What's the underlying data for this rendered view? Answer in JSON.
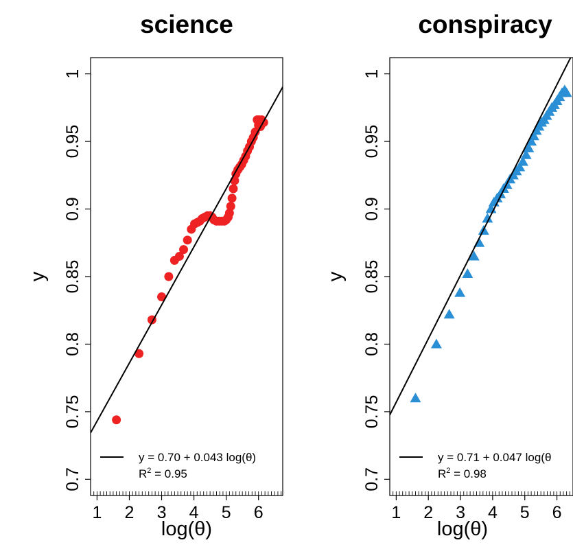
{
  "chart_data": [
    {
      "type": "scatter",
      "title": "science",
      "xlabel": "log(θ)",
      "ylabel": "y",
      "xlim": [
        0.8,
        6.75
      ],
      "ylim": [
        0.688,
        1.012
      ],
      "xticks": [
        1,
        2,
        3,
        4,
        5,
        6
      ],
      "yticks": [
        0.7,
        0.75,
        0.8,
        0.85,
        0.9,
        0.95,
        1
      ],
      "marker": "circle",
      "color": "#ee2222",
      "fit": {
        "intercept": 0.7,
        "slope": 0.043
      },
      "legend": {
        "position": "bottom-right",
        "equation": "y = 0.70 + 0.043 log(θ)",
        "r2_prefix": "R",
        "r2_sup": "2",
        "r2_suffix": " = 0.95"
      },
      "points": [
        [
          1.6,
          0.744
        ],
        [
          2.3,
          0.793
        ],
        [
          2.7,
          0.818
        ],
        [
          3.0,
          0.835
        ],
        [
          3.22,
          0.85
        ],
        [
          3.4,
          0.862
        ],
        [
          3.55,
          0.865
        ],
        [
          3.68,
          0.87
        ],
        [
          3.8,
          0.877
        ],
        [
          3.92,
          0.885
        ],
        [
          4.02,
          0.889
        ],
        [
          4.1,
          0.89
        ],
        [
          4.18,
          0.891
        ],
        [
          4.26,
          0.893
        ],
        [
          4.34,
          0.894
        ],
        [
          4.42,
          0.895
        ],
        [
          4.5,
          0.895
        ],
        [
          4.56,
          0.894
        ],
        [
          4.62,
          0.892
        ],
        [
          4.7,
          0.891
        ],
        [
          4.78,
          0.891
        ],
        [
          4.86,
          0.891
        ],
        [
          4.94,
          0.891
        ],
        [
          5.0,
          0.892
        ],
        [
          5.06,
          0.894
        ],
        [
          5.1,
          0.897
        ],
        [
          5.14,
          0.902
        ],
        [
          5.18,
          0.908
        ],
        [
          5.22,
          0.915
        ],
        [
          5.26,
          0.921
        ],
        [
          5.3,
          0.926
        ],
        [
          5.36,
          0.929
        ],
        [
          5.42,
          0.931
        ],
        [
          5.48,
          0.933
        ],
        [
          5.54,
          0.936
        ],
        [
          5.6,
          0.939
        ],
        [
          5.66,
          0.943
        ],
        [
          5.72,
          0.946
        ],
        [
          5.78,
          0.95
        ],
        [
          5.84,
          0.953
        ],
        [
          5.9,
          0.957
        ],
        [
          5.96,
          0.966
        ],
        [
          6.02,
          0.966
        ],
        [
          6.1,
          0.966
        ],
        [
          6.16,
          0.964
        ],
        [
          6.0,
          0.962
        ],
        [
          6.06,
          0.961
        ]
      ]
    },
    {
      "type": "scatter",
      "title": "conspiracy",
      "xlabel": "log(θ)",
      "ylabel": "y",
      "xlim": [
        0.8,
        6.5
      ],
      "ylim": [
        0.688,
        1.012
      ],
      "xticks": [
        1,
        2,
        3,
        4,
        5,
        6
      ],
      "yticks": [
        0.7,
        0.75,
        0.8,
        0.85,
        0.9,
        0.95,
        1
      ],
      "marker": "triangle",
      "color": "#2a8fd4",
      "fit": {
        "intercept": 0.71,
        "slope": 0.047
      },
      "legend": {
        "position": "bottom-right",
        "equation": "y = 0.71 + 0.047 log(θ",
        "r2_prefix": "R",
        "r2_sup": "2",
        "r2_suffix": " = 0.98"
      },
      "points": [
        [
          1.6,
          0.76
        ],
        [
          2.25,
          0.8
        ],
        [
          2.65,
          0.822
        ],
        [
          2.98,
          0.838
        ],
        [
          3.22,
          0.852
        ],
        [
          3.42,
          0.865
        ],
        [
          3.58,
          0.875
        ],
        [
          3.72,
          0.884
        ],
        [
          3.84,
          0.893
        ],
        [
          3.95,
          0.9
        ],
        [
          4.04,
          0.905
        ],
        [
          4.14,
          0.908
        ],
        [
          4.24,
          0.911
        ],
        [
          4.34,
          0.915
        ],
        [
          4.44,
          0.918
        ],
        [
          4.54,
          0.922
        ],
        [
          4.64,
          0.925
        ],
        [
          4.74,
          0.928
        ],
        [
          4.84,
          0.931
        ],
        [
          4.94,
          0.935
        ],
        [
          5.04,
          0.94
        ],
        [
          5.12,
          0.945
        ],
        [
          5.2,
          0.95
        ],
        [
          5.28,
          0.954
        ],
        [
          5.36,
          0.958
        ],
        [
          5.44,
          0.961
        ],
        [
          5.52,
          0.964
        ],
        [
          5.6,
          0.966
        ],
        [
          5.68,
          0.969
        ],
        [
          5.76,
          0.972
        ],
        [
          5.84,
          0.975
        ],
        [
          5.92,
          0.977
        ],
        [
          6.0,
          0.98
        ],
        [
          6.08,
          0.983
        ],
        [
          6.16,
          0.986
        ],
        [
          6.24,
          0.988
        ],
        [
          6.3,
          0.986
        ]
      ]
    }
  ]
}
